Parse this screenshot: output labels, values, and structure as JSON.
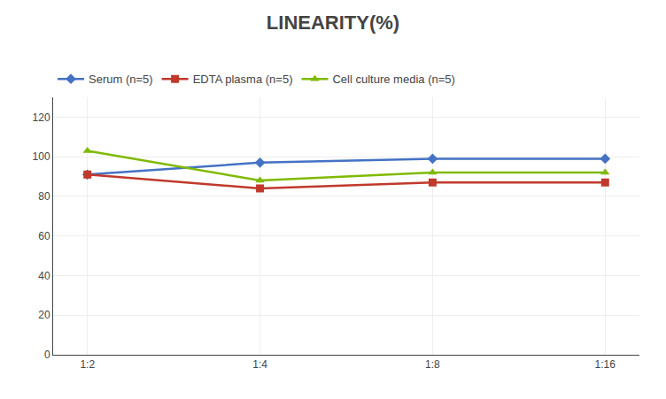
{
  "chart_data": {
    "type": "line",
    "title": "LINEARITY(%)",
    "categories": [
      "1:2",
      "1:4",
      "1:8",
      "1:16"
    ],
    "series": [
      {
        "name": "Serum (n=5)",
        "color": "#4472C4",
        "marker": "diamond",
        "values": [
          91,
          97,
          99,
          99
        ]
      },
      {
        "name": "EDTA plasma (n=5)",
        "color": "#C0392B",
        "marker": "square",
        "values": [
          91,
          84,
          87,
          87
        ]
      },
      {
        "name": "Cell culture media (n=5)",
        "color": "#7FBA00",
        "marker": "triangle-up",
        "values": [
          103,
          88,
          92,
          92
        ]
      }
    ],
    "ylim": [
      0,
      130
    ],
    "yticks": [
      0,
      20,
      40,
      60,
      80,
      100,
      120
    ],
    "grid": true,
    "legend": "top"
  }
}
